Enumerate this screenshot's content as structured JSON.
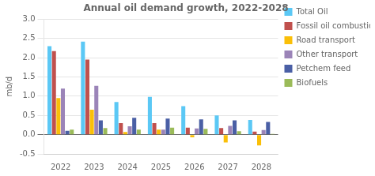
{
  "chart_data": {
    "type": "bar",
    "title": "Annual oil demand growth, 2022-2028",
    "ylabel": "mb/d",
    "categories": [
      "2022",
      "2023",
      "2024",
      "2025",
      "2026",
      "2027",
      "2028"
    ],
    "series": [
      {
        "name": "Total Oil",
        "color": "#5BC8F5",
        "values": [
          2.3,
          2.42,
          0.85,
          0.98,
          0.74,
          0.5,
          0.38
        ]
      },
      {
        "name": "Fossil oil combustion",
        "color": "#C0504D",
        "values": [
          2.17,
          1.95,
          0.3,
          0.3,
          0.18,
          0.17,
          0.08
        ]
      },
      {
        "name": "Road transport",
        "color": "#FABF08",
        "values": [
          0.95,
          0.65,
          0.07,
          0.13,
          -0.07,
          -0.2,
          -0.28
        ]
      },
      {
        "name": "Other transport",
        "color": "#9B84B8",
        "values": [
          1.2,
          1.27,
          0.22,
          0.13,
          0.16,
          0.23,
          0.12
        ]
      },
      {
        "name": "Petchem feed",
        "color": "#4A5FA5",
        "values": [
          0.1,
          0.37,
          0.44,
          0.42,
          0.4,
          0.37,
          0.33
        ]
      },
      {
        "name": "Biofuels",
        "color": "#9BBB59",
        "values": [
          0.13,
          0.17,
          0.13,
          0.18,
          0.15,
          0.09,
          0.02
        ]
      }
    ],
    "ylim": [
      -0.5,
      3.0
    ],
    "yticks": [
      -0.5,
      {
        "value": 0.0,
        "label": "0.0"
      },
      0.5,
      {
        "value": 1.0,
        "label": "1.0"
      },
      1.5,
      {
        "value": 2.0,
        "label": "2.0"
      },
      2.5,
      {
        "value": 3.0,
        "label": "3.0"
      }
    ],
    "grid": true,
    "legend": "right"
  }
}
